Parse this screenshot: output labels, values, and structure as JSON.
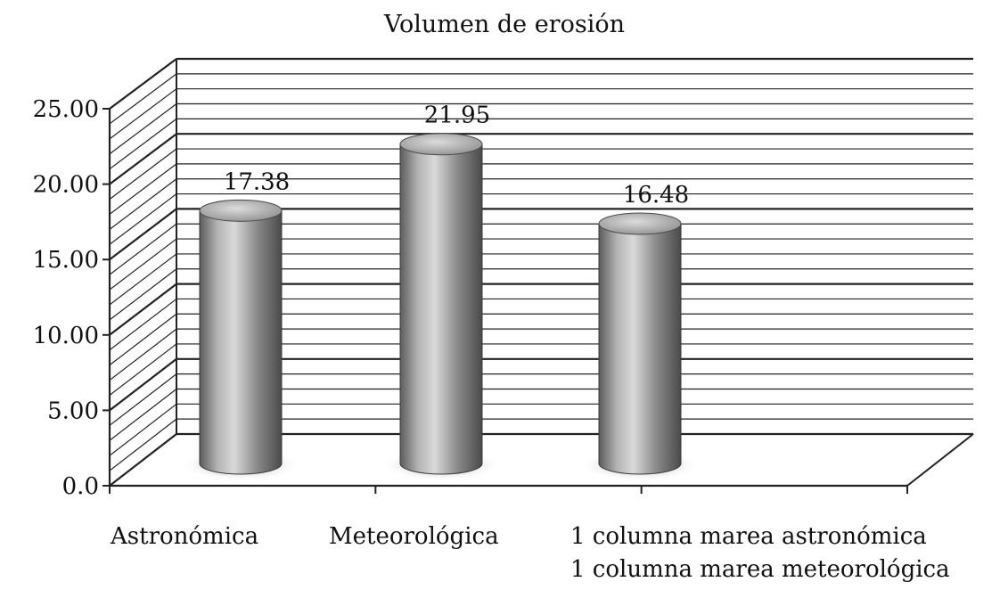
{
  "chart_data": {
    "type": "bar",
    "title": "Volumen de erosión",
    "categories": [
      [
        "Astronómica"
      ],
      [
        "Meteorológica"
      ],
      [
        "1 columna marea astronómica",
        "1 columna marea meteorológica"
      ]
    ],
    "values": [
      17.38,
      21.95,
      16.48
    ],
    "value_labels": [
      "17.38",
      "21.95",
      "16.48"
    ],
    "y_ticks": [
      "0.0",
      "5.00",
      "10.00",
      "15.00",
      "20.00",
      "25.00"
    ],
    "ylim": [
      0,
      25
    ],
    "grid": true,
    "style": "3d-cylinder",
    "colors": {
      "bar": "#9a9a9a",
      "grid": "#222222",
      "background": "#ffffff"
    }
  }
}
